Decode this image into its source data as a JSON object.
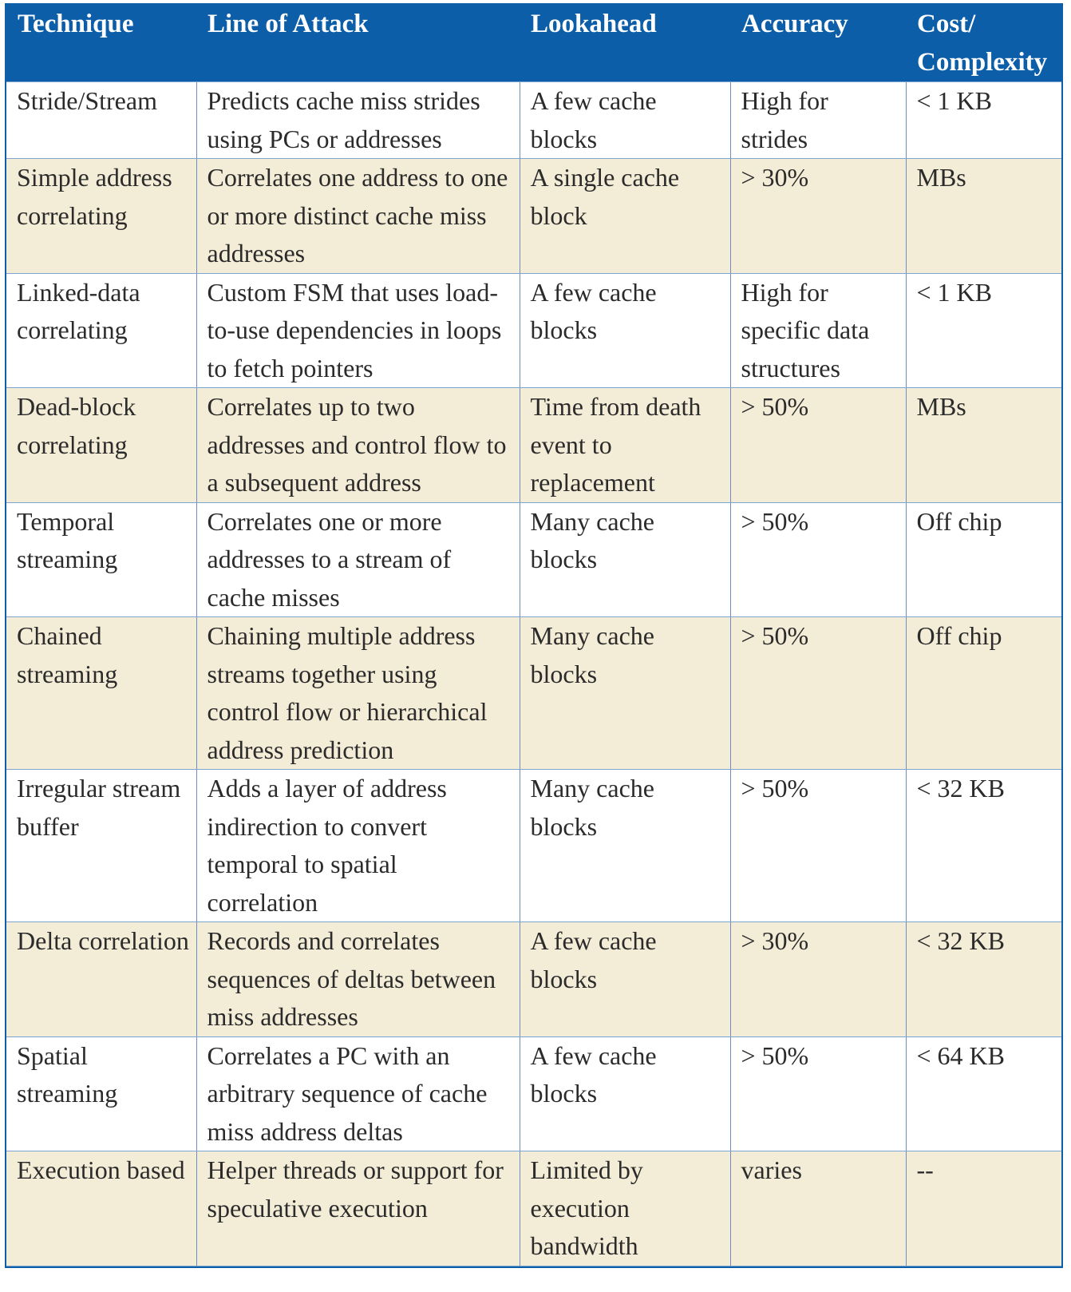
{
  "table": {
    "headers": [
      "Technique",
      "Line of Attack",
      "Lookahead",
      "Accuracy",
      "Cost/ Complexity"
    ],
    "rows": [
      [
        "Stride/Stream",
        "Predicts cache miss strides using PCs or addresses",
        "A few cache blocks",
        "High for strides",
        "< 1 KB"
      ],
      [
        "Simple address correlating",
        "Correlates one address to one or more distinct cache miss addresses",
        "A single cache block",
        "> 30%",
        "MBs"
      ],
      [
        "Linked-data correlating",
        "Custom FSM that uses load-to-use dependencies in loops to fetch pointers",
        "A few cache blocks",
        "High for specific data structures",
        "< 1 KB"
      ],
      [
        "Dead-block correlating",
        "Correlates up to two addresses and control flow to a subsequent address",
        "Time from death event to replacement",
        "> 50%",
        "MBs"
      ],
      [
        "Temporal streaming",
        "Correlates one or more addresses to a stream of cache misses",
        "Many cache blocks",
        "> 50%",
        "Off chip"
      ],
      [
        "Chained streaming",
        "Chaining multiple address streams together using control flow or hierarchical address prediction",
        "Many cache blocks",
        "> 50%",
        "Off chip"
      ],
      [
        "Irregular stream buffer",
        "Adds a layer of address indirection to convert temporal to spatial correlation",
        "Many cache blocks",
        "> 50%",
        "< 32 KB"
      ],
      [
        "Delta correlation",
        "Records and correlates sequences of deltas between miss addresses",
        "A few cache blocks",
        "> 30%",
        "< 32 KB"
      ],
      [
        "Spatial streaming",
        "Correlates a PC with an arbitrary sequence of cache miss address deltas",
        "A few cache blocks",
        "> 50%",
        "< 64 KB"
      ],
      [
        "Execution based",
        "Helper threads or support for speculative execution",
        "Limited by execution bandwidth",
        "varies",
        "--"
      ]
    ]
  },
  "colors": {
    "header_bg": "#0d5ea8",
    "header_text": "#ffffff",
    "row_alt_bg": "#f3ecd6",
    "row_bg": "#ffffff",
    "grid": "#7ea4cf"
  }
}
